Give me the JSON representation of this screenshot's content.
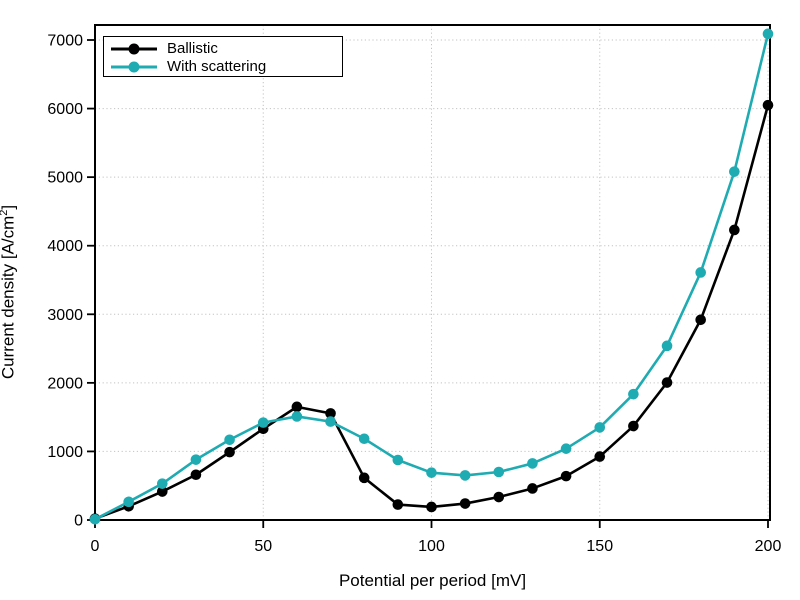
{
  "chart_data": {
    "type": "line",
    "x": [
      0,
      10,
      20,
      30,
      40,
      50,
      60,
      70,
      80,
      90,
      100,
      110,
      120,
      130,
      140,
      150,
      160,
      170,
      180,
      190,
      200
    ],
    "series": [
      {
        "name": "Ballistic",
        "color": "#000000",
        "marker": "circle",
        "values": [
          20,
          200,
          415,
          660,
          990,
          1330,
          1650,
          1555,
          615,
          225,
          190,
          240,
          335,
          460,
          640,
          925,
          1370,
          2005,
          2920,
          4230,
          6050
        ]
      },
      {
        "name": "With scattering",
        "color": "#1fabb2",
        "marker": "circle",
        "values": [
          10,
          265,
          530,
          880,
          1170,
          1420,
          1510,
          1435,
          1185,
          875,
          690,
          650,
          700,
          825,
          1040,
          1350,
          1835,
          2540,
          3610,
          5080,
          7090
        ]
      }
    ],
    "title": "",
    "xlabel": "Potential per period [mV]",
    "ylabel": "Current density [A/cm²]",
    "xlim": [
      0,
      200
    ],
    "ylim": [
      0,
      7250
    ],
    "xticks": [
      0,
      50,
      100,
      150,
      200
    ],
    "yticks": [
      0,
      1000,
      2000,
      3000,
      4000,
      5000,
      6000,
      7000
    ],
    "grid": "dotted",
    "grid_color": "#c3c3c3",
    "legend_position": "top-left",
    "axis_color": "#000000",
    "background_color": "#ffffff"
  }
}
